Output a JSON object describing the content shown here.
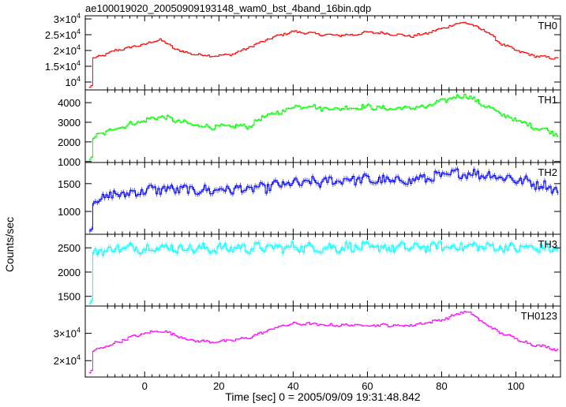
{
  "chart_data": {
    "type": "line",
    "title": "ae100019020_20050909193148_wam0_bst_4band_16bin.qdp",
    "xlabel": "Time [sec] 0 = 2005/09/09 19:31:48.842",
    "ylabel": "Counts/sec",
    "xlim": [
      -16,
      112
    ],
    "xticks": [
      0,
      20,
      40,
      60,
      80,
      100
    ],
    "xtick_labels": [
      "0",
      "20",
      "40",
      "60",
      "80",
      "100"
    ],
    "grid": false,
    "panels": [
      {
        "name": "TH0",
        "color": "#ff0000",
        "ylim": [
          7500,
          31000
        ],
        "yticks": [
          10000,
          15000,
          20000,
          25000,
          30000
        ],
        "ytick_labels": [
          {
            "m": "",
            "e": "10",
            "s": "4"
          },
          {
            "m": "1.5×",
            "e": "10",
            "s": "4"
          },
          {
            "m": "2×",
            "e": "10",
            "s": "4"
          },
          {
            "m": "2.5×",
            "e": "10",
            "s": "4"
          },
          {
            "m": "3×",
            "e": "10",
            "s": "4"
          }
        ],
        "x": [
          -15,
          -14.2,
          -14,
          -12,
          -8,
          -4,
          0,
          4,
          8,
          12,
          16,
          20,
          24,
          28,
          32,
          36,
          40,
          44,
          48,
          52,
          56,
          60,
          64,
          68,
          72,
          76,
          80,
          84,
          86,
          88,
          92,
          96,
          100,
          104,
          108,
          111
        ],
        "y": [
          8300,
          9200,
          17500,
          18200,
          20000,
          21000,
          22000,
          23500,
          20500,
          19000,
          18500,
          18300,
          19000,
          21000,
          23000,
          24800,
          26000,
          25500,
          25000,
          24800,
          25000,
          25800,
          25500,
          25000,
          24500,
          25500,
          27000,
          28500,
          29000,
          28000,
          26000,
          22000,
          20000,
          18500,
          17800,
          17500
        ],
        "noise": 350
      },
      {
        "name": "TH1",
        "color": "#00ff00",
        "ylim": [
          950,
          4650
        ],
        "yticks": [
          1000,
          2000,
          3000,
          4000
        ],
        "ytick_labels": [
          {
            "m": "1000"
          },
          {
            "m": "2000"
          },
          {
            "m": "3000"
          },
          {
            "m": "4000"
          }
        ],
        "x": [
          -15,
          -14.2,
          -14,
          -12,
          -8,
          -4,
          0,
          4,
          8,
          12,
          16,
          20,
          24,
          28,
          32,
          36,
          40,
          44,
          48,
          52,
          56,
          60,
          64,
          68,
          72,
          76,
          80,
          84,
          86,
          88,
          92,
          96,
          100,
          104,
          108,
          111
        ],
        "y": [
          1100,
          1300,
          2200,
          2400,
          2700,
          2900,
          3100,
          3300,
          3100,
          2900,
          2800,
          2750,
          2800,
          2800,
          3300,
          3500,
          3800,
          3850,
          3700,
          3700,
          3750,
          3800,
          3700,
          3700,
          3750,
          3800,
          4100,
          4300,
          4400,
          4200,
          3800,
          3400,
          3100,
          2800,
          2600,
          2400
        ],
        "noise": 110
      },
      {
        "name": "TH2",
        "color": "#0000ff",
        "ylim": [
          590,
          1880
        ],
        "yticks": [
          1000,
          1500
        ],
        "ytick_labels": [
          {
            "m": "1000"
          },
          {
            "m": "1500"
          }
        ],
        "x": [
          -15,
          -14.2,
          -14,
          -12,
          -8,
          -4,
          0,
          4,
          8,
          12,
          16,
          20,
          24,
          28,
          32,
          36,
          40,
          44,
          48,
          52,
          56,
          60,
          64,
          68,
          72,
          76,
          80,
          84,
          86,
          88,
          92,
          96,
          100,
          104,
          108,
          111
        ],
        "y": [
          650,
          700,
          1150,
          1250,
          1300,
          1330,
          1380,
          1400,
          1400,
          1380,
          1380,
          1390,
          1400,
          1400,
          1430,
          1480,
          1500,
          1520,
          1530,
          1560,
          1580,
          1570,
          1550,
          1550,
          1570,
          1600,
          1640,
          1680,
          1690,
          1680,
          1660,
          1620,
          1570,
          1520,
          1450,
          1400
        ],
        "noise": 80
      },
      {
        "name": "TH3",
        "color": "#00ffff",
        "ylim": [
          1300,
          2780
        ],
        "yticks": [
          1500,
          2000,
          2500
        ],
        "ytick_labels": [
          {
            "m": "1500"
          },
          {
            "m": "2000"
          },
          {
            "m": "2500"
          }
        ],
        "x": [
          -15,
          -14.2,
          -14,
          -12,
          -8,
          -4,
          0,
          4,
          8,
          12,
          16,
          20,
          24,
          28,
          32,
          36,
          40,
          44,
          48,
          52,
          56,
          60,
          64,
          68,
          72,
          76,
          80,
          84,
          86,
          88,
          92,
          96,
          100,
          104,
          108,
          111
        ],
        "y": [
          1350,
          1450,
          2350,
          2450,
          2480,
          2500,
          2500,
          2510,
          2500,
          2490,
          2480,
          2490,
          2500,
          2500,
          2510,
          2500,
          2520,
          2510,
          2500,
          2510,
          2520,
          2500,
          2510,
          2500,
          2510,
          2520,
          2530,
          2520,
          2540,
          2530,
          2520,
          2510,
          2500,
          2500,
          2490,
          2480
        ],
        "noise": 90
      },
      {
        "name": "TH0123",
        "color": "#ff00ff",
        "ylim": [
          14000,
          40000
        ],
        "yticks": [
          20000,
          30000
        ],
        "ytick_labels": [
          {
            "m": "2×",
            "e": "10",
            "s": "4"
          },
          {
            "m": "3×",
            "e": "10",
            "s": "4"
          }
        ],
        "x": [
          -15,
          -14.2,
          -14,
          -12,
          -8,
          -4,
          0,
          4,
          8,
          12,
          16,
          20,
          24,
          28,
          32,
          36,
          40,
          44,
          48,
          52,
          56,
          60,
          64,
          68,
          72,
          76,
          80,
          84,
          86,
          88,
          92,
          96,
          100,
          104,
          108,
          111
        ],
        "y": [
          15500,
          17000,
          23500,
          24500,
          26500,
          28500,
          30000,
          31000,
          29500,
          27500,
          27000,
          27000,
          27500,
          28500,
          30500,
          32500,
          33500,
          33500,
          33000,
          33000,
          33000,
          33000,
          33000,
          32800,
          33000,
          34000,
          35000,
          37000,
          38000,
          37000,
          33000,
          30000,
          28000,
          26000,
          25000,
          24000
        ],
        "noise": 450
      }
    ]
  }
}
